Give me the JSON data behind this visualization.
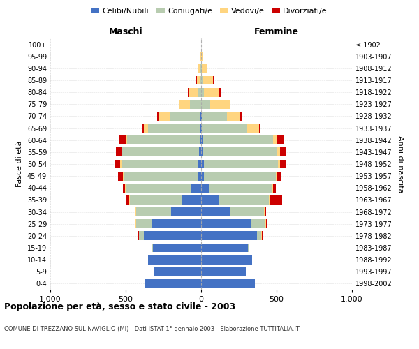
{
  "age_groups": [
    "0-4",
    "5-9",
    "10-14",
    "15-19",
    "20-24",
    "25-29",
    "30-34",
    "35-39",
    "40-44",
    "45-49",
    "50-54",
    "55-59",
    "60-64",
    "65-69",
    "70-74",
    "75-79",
    "80-84",
    "85-89",
    "90-94",
    "95-99",
    "100+"
  ],
  "birth_years": [
    "1998-2002",
    "1993-1997",
    "1988-1992",
    "1983-1987",
    "1978-1982",
    "1973-1977",
    "1968-1972",
    "1963-1967",
    "1958-1962",
    "1953-1957",
    "1948-1952",
    "1943-1947",
    "1938-1942",
    "1933-1937",
    "1928-1932",
    "1923-1927",
    "1918-1922",
    "1913-1917",
    "1908-1912",
    "1903-1907",
    "≤ 1902"
  ],
  "maschi": {
    "celibi": [
      370,
      310,
      350,
      320,
      380,
      330,
      200,
      130,
      70,
      25,
      20,
      15,
      10,
      10,
      10,
      0,
      0,
      0,
      0,
      0,
      0
    ],
    "coniugati": [
      0,
      0,
      0,
      5,
      30,
      100,
      230,
      340,
      430,
      490,
      510,
      510,
      480,
      340,
      200,
      75,
      25,
      10,
      5,
      2,
      0
    ],
    "vedovi": [
      0,
      0,
      0,
      0,
      0,
      5,
      5,
      5,
      5,
      5,
      5,
      5,
      10,
      30,
      70,
      70,
      55,
      20,
      15,
      5,
      0
    ],
    "divorziati": [
      0,
      0,
      0,
      0,
      5,
      5,
      5,
      20,
      15,
      30,
      35,
      35,
      40,
      10,
      10,
      5,
      10,
      5,
      0,
      0,
      0
    ]
  },
  "femmine": {
    "nubili": [
      355,
      295,
      340,
      310,
      370,
      330,
      190,
      120,
      55,
      20,
      20,
      15,
      10,
      5,
      5,
      0,
      0,
      0,
      0,
      0,
      0
    ],
    "coniugate": [
      0,
      0,
      0,
      5,
      30,
      95,
      225,
      330,
      415,
      475,
      490,
      490,
      465,
      300,
      165,
      60,
      20,
      10,
      5,
      0,
      0
    ],
    "vedove": [
      0,
      0,
      0,
      0,
      5,
      5,
      5,
      5,
      5,
      10,
      15,
      20,
      30,
      80,
      90,
      130,
      100,
      70,
      35,
      15,
      2
    ],
    "divorziate": [
      0,
      0,
      0,
      0,
      5,
      5,
      10,
      80,
      20,
      25,
      35,
      40,
      45,
      10,
      10,
      5,
      10,
      5,
      0,
      0,
      0
    ]
  },
  "colors": {
    "celibi": "#4472C4",
    "coniugati": "#B8CCB0",
    "vedovi": "#FFD580",
    "divorziati": "#CC0000"
  },
  "xlim": 1000,
  "title": "Popolazione per età, sesso e stato civile - 2003",
  "subtitle": "COMUNE DI TREZZANO SUL NAVIGLIO (MI) - Dati ISTAT 1° gennaio 2003 - Elaborazione TUTTITALIA.IT",
  "ylabel": "Fasce di età",
  "ylabel_right": "Anni di nascita",
  "xlabel_left": "Maschi",
  "xlabel_right": "Femmine"
}
